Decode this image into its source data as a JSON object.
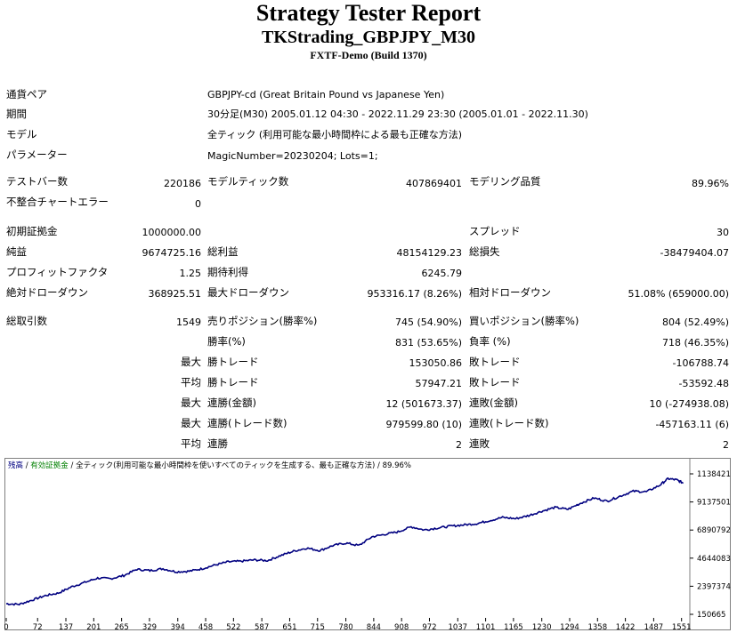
{
  "header": {
    "title": "Strategy Tester Report",
    "ea_name": "TKStrading_GBPJPY_M30",
    "server": "FXTF-Demo (Build 1370)"
  },
  "info": [
    {
      "label": "通貨ペア",
      "value": "GBPJPY-cd (Great Britain Pound vs Japanese Yen)"
    },
    {
      "label": "期間",
      "value": "30分足(M30) 2005.01.12 04:30 - 2022.11.29 23:30 (2005.01.01 - 2022.11.30)"
    },
    {
      "label": "モデル",
      "value": "全ティック (利用可能な最小時間枠による最も正確な方法)"
    },
    {
      "label": "パラメーター",
      "value": "MagicNumber=20230204; Lots=1;"
    }
  ],
  "stats": {
    "bars_label": "テストバー数",
    "bars": "220186",
    "ticks_label": "モデルティック数",
    "ticks": "407869401",
    "quality_label": "モデリング品質",
    "quality": "89.96%",
    "mismatch_label": "不整合チャートエラー",
    "mismatch": "0",
    "deposit_label": "初期証拠金",
    "deposit": "1000000.00",
    "spread_label": "スプレッド",
    "spread": "30",
    "net_label": "純益",
    "net": "9674725.16",
    "gross_profit_label": "総利益",
    "gross_profit": "48154129.23",
    "gross_loss_label": "総損失",
    "gross_loss": "-38479404.07",
    "pf_label": "プロフィットファクタ",
    "pf": "1.25",
    "expected_label": "期待利得",
    "expected": "6245.79",
    "abs_dd_label": "絶対ドローダウン",
    "abs_dd": "368925.51",
    "max_dd_label": "最大ドローダウン",
    "max_dd": "953316.17 (8.26%)",
    "rel_dd_label": "相対ドローダウン",
    "rel_dd": "51.08% (659000.00)",
    "total_label": "総取引数",
    "total": "1549",
    "short_label": "売りポジション(勝率%)",
    "short": "745 (54.90%)",
    "long_label": "買いポジション(勝率%)",
    "long": "804 (52.49%)",
    "win_label": "勝率(%)",
    "win": "831 (53.65%)",
    "loss_label": "負率 (%)",
    "loss": "718 (46.35%)",
    "max_word": "最大",
    "avg_word": "平均",
    "largest_win_label": "勝トレード",
    "largest_win": "153050.86",
    "largest_loss_label": "敗トレード",
    "largest_loss": "-106788.74",
    "avg_win_label": "勝トレード",
    "avg_win": "57947.21",
    "avg_loss_label": "敗トレード",
    "avg_loss": "-53592.48",
    "cons_wins_label": "連勝(金額)",
    "cons_wins": "12 (501673.37)",
    "cons_losses_label": "連敗(金額)",
    "cons_losses": "10 (-274938.08)",
    "cons_profit_label": "連勝(トレード数)",
    "cons_profit": "979599.80 (10)",
    "cons_loss_label": "連敗(トレード数)",
    "cons_loss": "-457163.11 (6)",
    "avg_cons_wins_label": "連勝",
    "avg_cons_wins": "2",
    "avg_cons_losses_label": "連敗",
    "avg_cons_losses": "2"
  },
  "colors": {
    "line": "#000080",
    "legend_balance": "#000080",
    "legend_equity": "#008000"
  },
  "chart_data": {
    "type": "line",
    "legend": {
      "balance": "残高",
      "sep1": " / ",
      "equity": "有効証拠金",
      "sep2": " / ",
      "model": "全ティック(利用可能な最小時間枠を使いすべてのティックを生成する、最も正確な方法)",
      "sep3": " / ",
      "quality": "89.96%"
    },
    "x_ticks": [
      "0",
      "72",
      "137",
      "201",
      "265",
      "329",
      "394",
      "458",
      "522",
      "587",
      "651",
      "715",
      "780",
      "844",
      "908",
      "972",
      "1037",
      "1101",
      "1165",
      "1230",
      "1294",
      "1358",
      "1422",
      "1487",
      "1551"
    ],
    "y_ticks": [
      "11384210",
      "9137501",
      "6890792",
      "4644083",
      "2397374",
      "150665"
    ],
    "xlim": [
      0,
      1570
    ],
    "ylim": [
      150665,
      11384210
    ],
    "x": [
      0,
      30,
      60,
      90,
      120,
      150,
      180,
      210,
      240,
      270,
      300,
      330,
      360,
      390,
      420,
      450,
      480,
      510,
      540,
      570,
      600,
      630,
      660,
      690,
      720,
      750,
      780,
      810,
      840,
      870,
      900,
      930,
      960,
      990,
      1020,
      1050,
      1080,
      1110,
      1140,
      1170,
      1200,
      1230,
      1260,
      1290,
      1320,
      1350,
      1380,
      1410,
      1440,
      1470,
      1500,
      1520,
      1540,
      1555
    ],
    "y": [
      1000000,
      950000,
      1300000,
      1650000,
      1850000,
      2350000,
      2700000,
      3050000,
      3000000,
      3250000,
      3750000,
      3650000,
      3800000,
      3550000,
      3600000,
      3800000,
      4100000,
      4350000,
      4400000,
      4500000,
      4450000,
      4850000,
      5200000,
      5450000,
      5250000,
      5650000,
      5850000,
      5650000,
      6350000,
      6550000,
      6750000,
      7150000,
      6900000,
      7050000,
      7200000,
      7300000,
      7400000,
      7650000,
      7900000,
      7800000,
      8050000,
      8400000,
      8700000,
      8550000,
      9050000,
      9450000,
      9200000,
      9600000,
      10000000,
      9950000,
      10450000,
      11000000,
      10900000,
      10650000
    ]
  }
}
